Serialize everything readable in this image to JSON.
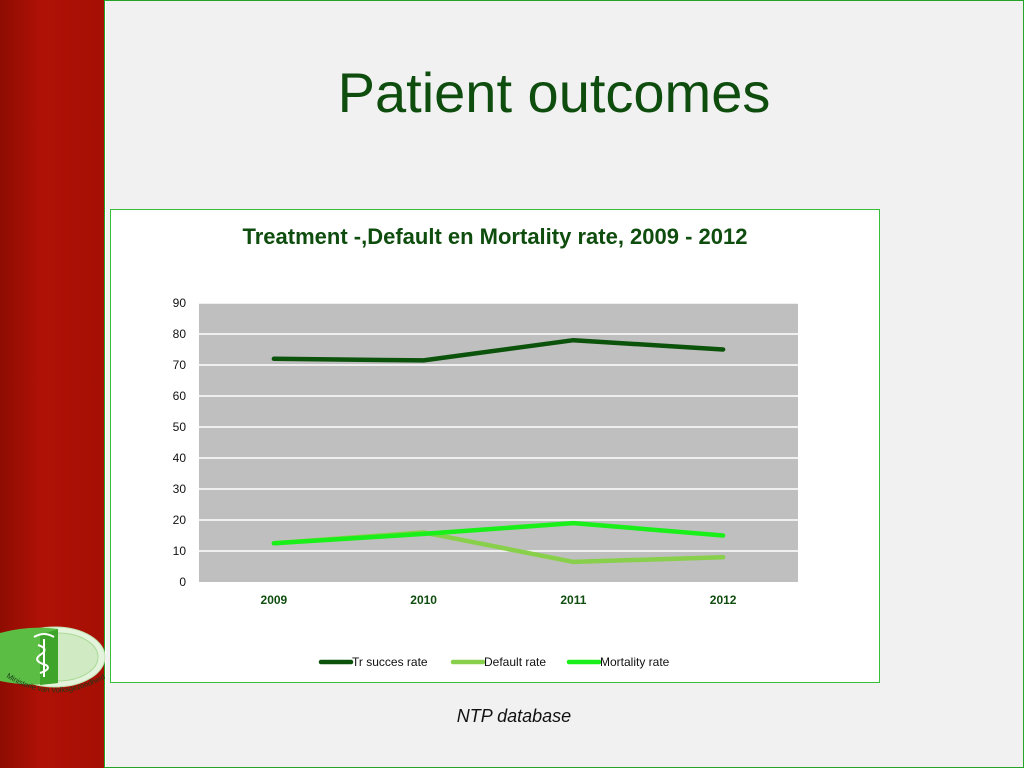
{
  "slide": {
    "title": "Patient outcomes",
    "source": "NTP database",
    "logo_text": "Ministerie van Volksgezondheid"
  },
  "colors": {
    "sidebar": "#a50f04",
    "title": "#0f4d0f",
    "plot_background": "#bfbfbf",
    "gridline": "#ffffff"
  },
  "chart_data": {
    "type": "line",
    "title": "Treatment -,Default en Mortality rate, 2009 - 2012",
    "xlabel": "",
    "ylabel": "",
    "categories": [
      "2009",
      "2010",
      "2011",
      "2012"
    ],
    "ylim": [
      0,
      90
    ],
    "yticks": [
      0,
      10,
      20,
      30,
      40,
      50,
      60,
      70,
      80,
      90
    ],
    "grid": true,
    "legend_position": "bottom",
    "series": [
      {
        "name": "Tr succes rate",
        "color": "#0b520b",
        "values": [
          72,
          71.5,
          78,
          75
        ]
      },
      {
        "name": "Default rate",
        "color": "#88d04b",
        "values": [
          12.5,
          16,
          6.5,
          8
        ]
      },
      {
        "name": "Mortality rate",
        "color": "#19ef19",
        "values": [
          12.5,
          15.5,
          19,
          15
        ]
      }
    ]
  }
}
